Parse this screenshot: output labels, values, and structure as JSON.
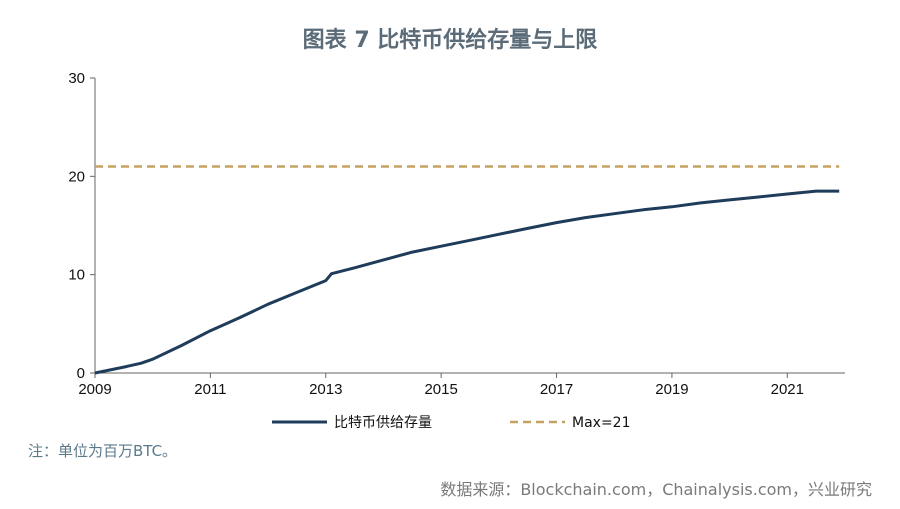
{
  "title": "图表 7 比特币供给存量与上限",
  "note": "注：单位为百万BTC。",
  "source": "数据来源：Blockchain.com，Chainalysis.com，兴业研究",
  "colors": {
    "supply": "#1f3c5a",
    "max": "#c6a262",
    "axis": "#666666"
  },
  "chart_data": {
    "type": "line",
    "xlim": [
      2009,
      2022
    ],
    "ylim": [
      0,
      30
    ],
    "x_ticks": [
      2009,
      2011,
      2013,
      2015,
      2017,
      2019,
      2021
    ],
    "y_ticks": [
      0,
      10,
      20,
      30
    ],
    "series": [
      {
        "name": "比特币供给存量",
        "style": "solid",
        "x": [
          2009.0,
          2009.5,
          2009.8,
          2010.0,
          2010.5,
          2011.0,
          2011.5,
          2012.0,
          2012.5,
          2013.0,
          2013.1,
          2013.5,
          2014.0,
          2014.5,
          2015.0,
          2015.5,
          2016.0,
          2016.5,
          2017.0,
          2017.5,
          2018.0,
          2018.5,
          2019.0,
          2019.5,
          2020.0,
          2020.5,
          2021.0,
          2021.5,
          2021.9
        ],
        "y": [
          0.0,
          0.6,
          1.0,
          1.4,
          2.8,
          4.3,
          5.6,
          7.0,
          8.2,
          9.4,
          10.1,
          10.7,
          11.5,
          12.3,
          12.9,
          13.5,
          14.1,
          14.7,
          15.3,
          15.8,
          16.2,
          16.6,
          16.9,
          17.3,
          17.6,
          17.9,
          18.2,
          18.5,
          18.5
        ]
      },
      {
        "name": "Max=21",
        "style": "dashed",
        "x": [
          2009.0,
          2021.9
        ],
        "y": [
          21,
          21
        ]
      }
    ]
  }
}
